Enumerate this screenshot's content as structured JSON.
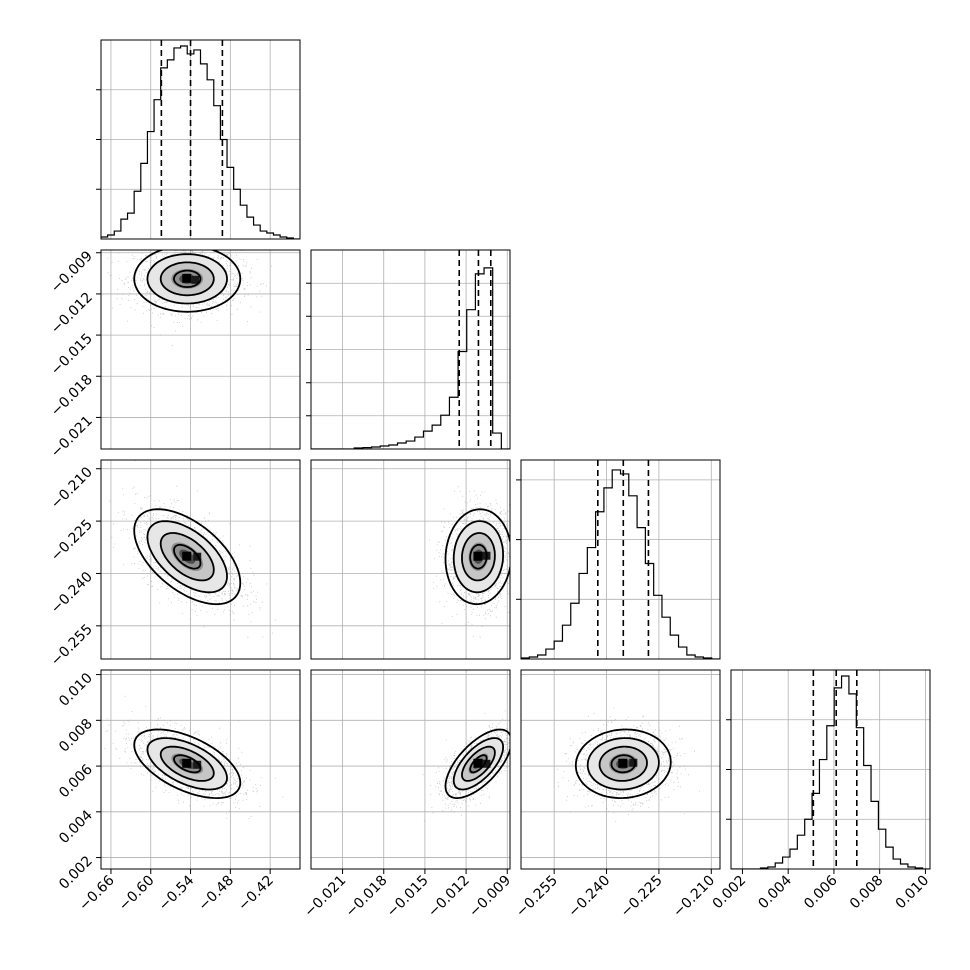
{
  "chart_data": {
    "type": "corner",
    "parameters": [
      {
        "range": [
          -0.675,
          -0.375
        ],
        "ticks": [
          -0.66,
          -0.6,
          -0.54,
          -0.48,
          -0.42
        ],
        "tick_labels": [
          "−0.66",
          "−0.60",
          "−0.54",
          "−0.48",
          "−0.42"
        ],
        "quantiles": [
          -0.584,
          -0.54,
          -0.492
        ],
        "hist_ticks": [
          0.25,
          0.5,
          0.75
        ],
        "hist": [
          0.01,
          0.02,
          0.04,
          0.1,
          0.13,
          0.24,
          0.38,
          0.54,
          0.7,
          0.86,
          0.9,
          0.96,
          0.97,
          0.93,
          0.95,
          0.88,
          0.8,
          0.67,
          0.5,
          0.36,
          0.25,
          0.17,
          0.11,
          0.07,
          0.04,
          0.03,
          0.02,
          0.01,
          0.005,
          0
        ]
      },
      {
        "range": [
          -0.0233,
          -0.0088
        ],
        "ticks": [
          -0.021,
          -0.018,
          -0.015,
          -0.012,
          -0.009
        ],
        "tick_labels": [
          "−0.021",
          "−0.018",
          "−0.015",
          "−0.012",
          "−0.009"
        ],
        "quantiles": [
          -0.0125,
          -0.0111,
          -0.0102
        ],
        "hist_ticks": [
          0.167,
          0.333,
          0.5,
          0.667,
          0.833
        ],
        "hist": [
          0,
          0,
          0,
          0,
          0,
          0.005,
          0.007,
          0.01,
          0.015,
          0.02,
          0.03,
          0.04,
          0.06,
          0.09,
          0.12,
          0.17,
          0.26,
          0.49,
          0.7,
          0.88,
          0.91,
          0.08,
          0
        ]
      },
      {
        "range": [
          -0.2645,
          -0.2075
        ],
        "ticks": [
          -0.255,
          -0.24,
          -0.225,
          -0.21
        ],
        "tick_labels": [
          "−0.255",
          "−0.240",
          "−0.225",
          "−0.210"
        ],
        "quantiles": [
          -0.2425,
          -0.2352,
          -0.228
        ],
        "hist_ticks": [
          0.3,
          0.6,
          0.9
        ],
        "hist": [
          0.005,
          0.01,
          0.02,
          0.05,
          0.09,
          0.17,
          0.28,
          0.43,
          0.56,
          0.74,
          0.86,
          0.95,
          0.93,
          0.82,
          0.66,
          0.48,
          0.32,
          0.21,
          0.12,
          0.06,
          0.02,
          0.01,
          0.005,
          0
        ]
      },
      {
        "range": [
          0.0015,
          0.0102
        ],
        "ticks": [
          0.002,
          0.004,
          0.006,
          0.008,
          0.01
        ],
        "tick_labels": [
          "0.002",
          "0.004",
          "0.006",
          "0.008",
          "0.010"
        ],
        "quantiles": [
          0.0051,
          0.0061,
          0.007
        ],
        "hist_ticks": [
          0.25,
          0.5,
          0.75
        ],
        "hist": [
          0,
          0,
          0,
          0,
          0.005,
          0.01,
          0.03,
          0.06,
          0.1,
          0.17,
          0.25,
          0.38,
          0.55,
          0.72,
          0.91,
          0.97,
          0.88,
          0.71,
          0.52,
          0.34,
          0.2,
          0.11,
          0.05,
          0.025,
          0.01,
          0.005,
          0
        ]
      }
    ],
    "pairs": [
      {
        "row": 1,
        "col": 0,
        "center": [
          -0.545,
          -0.0109
        ],
        "sigma": [
          0.04,
          0.0012
        ],
        "rho": 0.0
      },
      {
        "row": 2,
        "col": 0,
        "center": [
          -0.545,
          -0.2352
        ],
        "sigma": [
          0.04,
          0.0068
        ],
        "rho": -0.55
      },
      {
        "row": 2,
        "col": 1,
        "center": [
          -0.0111,
          -0.2352
        ],
        "sigma": [
          0.0012,
          0.0068
        ],
        "rho": 0.05
      },
      {
        "row": 3,
        "col": 0,
        "center": [
          -0.545,
          0.0061
        ],
        "sigma": [
          0.04,
          0.00075
        ],
        "rho": -0.55
      },
      {
        "row": 3,
        "col": 1,
        "center": [
          -0.0111,
          0.0061
        ],
        "sigma": [
          0.0012,
          0.00075
        ],
        "rho": 0.65
      },
      {
        "row": 3,
        "col": 2,
        "center": [
          -0.2352,
          0.0061
        ],
        "sigma": [
          0.0068,
          0.00075
        ],
        "rho": 0.05
      }
    ],
    "contour_levels_sigma": [
      0.5,
      1.0,
      1.5,
      2.0
    ],
    "grid": true,
    "colors": {
      "line": "#000000",
      "scatter": "#a0a0a0",
      "grid": "#b0b0b0",
      "frame": "#000000"
    }
  }
}
